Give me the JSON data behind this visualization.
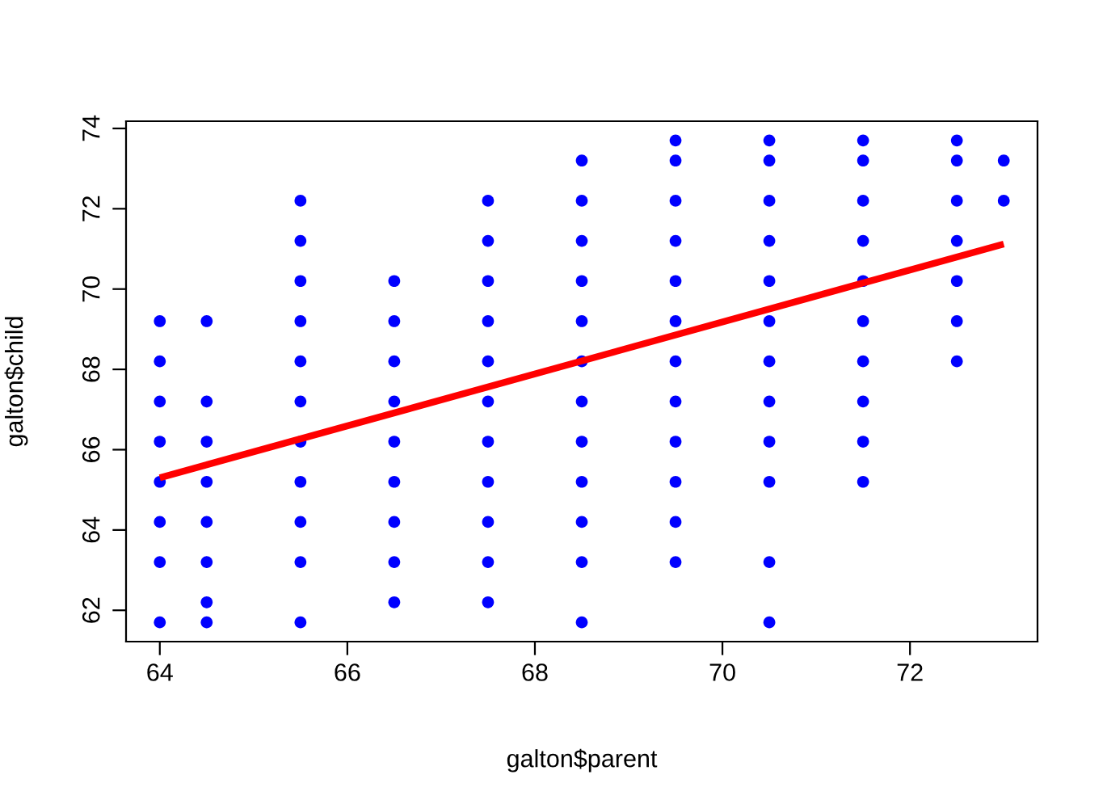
{
  "chart_data": {
    "type": "scatter",
    "xlabel": "galton$parent",
    "ylabel": "galton$child",
    "series": [
      {
        "color": "#0000ff",
        "marker": "circle",
        "x": [
          64,
          64,
          64,
          64,
          64,
          64,
          64,
          64,
          64.5,
          64.5,
          64.5,
          64.5,
          64.5,
          64.5,
          64.5,
          64.5,
          65.5,
          65.5,
          65.5,
          65.5,
          65.5,
          65.5,
          65.5,
          65.5,
          65.5,
          65.5,
          65.5,
          66.5,
          66.5,
          66.5,
          66.5,
          66.5,
          66.5,
          66.5,
          66.5,
          66.5,
          67.5,
          67.5,
          67.5,
          67.5,
          67.5,
          67.5,
          67.5,
          67.5,
          67.5,
          67.5,
          67.5,
          68.5,
          68.5,
          68.5,
          68.5,
          68.5,
          68.5,
          68.5,
          68.5,
          68.5,
          68.5,
          68.5,
          68.5,
          69.5,
          69.5,
          69.5,
          69.5,
          69.5,
          69.5,
          69.5,
          69.5,
          69.5,
          69.5,
          69.5,
          69.5,
          70.5,
          70.5,
          70.5,
          70.5,
          70.5,
          70.5,
          70.5,
          70.5,
          70.5,
          70.5,
          70.5,
          70.5,
          71.5,
          71.5,
          71.5,
          71.5,
          71.5,
          71.5,
          71.5,
          71.5,
          71.5,
          71.5,
          72.5,
          72.5,
          72.5,
          72.5,
          72.5,
          72.5,
          72.5,
          73,
          73
        ],
        "values": [
          61.7,
          63.2,
          64.2,
          65.2,
          66.2,
          67.2,
          68.2,
          69.2,
          61.7,
          62.2,
          63.2,
          64.2,
          65.2,
          66.2,
          67.2,
          69.2,
          61.7,
          63.2,
          64.2,
          65.2,
          66.2,
          67.2,
          68.2,
          69.2,
          70.2,
          71.2,
          72.2,
          62.2,
          63.2,
          64.2,
          65.2,
          66.2,
          67.2,
          68.2,
          69.2,
          70.2,
          62.2,
          63.2,
          64.2,
          65.2,
          66.2,
          67.2,
          68.2,
          69.2,
          70.2,
          71.2,
          72.2,
          61.7,
          63.2,
          64.2,
          65.2,
          66.2,
          67.2,
          68.2,
          69.2,
          70.2,
          71.2,
          72.2,
          73.2,
          63.2,
          64.2,
          65.2,
          66.2,
          67.2,
          68.2,
          69.2,
          70.2,
          71.2,
          72.2,
          73.2,
          73.7,
          61.7,
          63.2,
          65.2,
          66.2,
          67.2,
          68.2,
          69.2,
          70.2,
          71.2,
          72.2,
          73.2,
          73.7,
          65.2,
          66.2,
          67.2,
          68.2,
          69.2,
          70.2,
          71.2,
          72.2,
          73.2,
          73.7,
          68.2,
          69.2,
          70.2,
          71.2,
          72.2,
          73.2,
          73.7,
          72.2,
          73.2
        ]
      },
      {
        "type": "line",
        "color": "#ff0000",
        "line_style": "solid",
        "x": [
          64,
          73
        ],
        "values": [
          65.3,
          71.12
        ]
      }
    ],
    "xlim": [
      63.64,
      73.36
    ],
    "ylim": [
      61.22,
      74.18
    ],
    "xticks": [
      64,
      66,
      68,
      70,
      72
    ],
    "yticks": [
      62,
      64,
      66,
      68,
      70,
      72,
      74
    ],
    "grid": false,
    "legend": false
  }
}
